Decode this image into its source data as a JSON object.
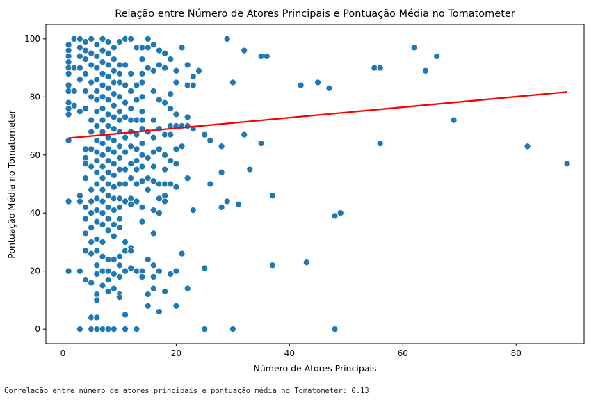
{
  "chart_data": {
    "type": "scatter",
    "title": "Relação entre Número de Atores Principais e Pontuação Média no Tomatometer",
    "xlabel": "Número de Atores Principais",
    "ylabel": "Pontuação Média no Tomatometer",
    "xlim": [
      -3,
      92
    ],
    "ylim": [
      -5,
      105
    ],
    "xticks": [
      0,
      20,
      40,
      60,
      80
    ],
    "yticks": [
      0,
      20,
      40,
      60,
      80,
      100
    ],
    "grid": false,
    "colors": {
      "points": "#1f77b4",
      "point_edge": "#ffffff",
      "regression": "#ff0000"
    },
    "regression_line": {
      "x": [
        1,
        89
      ],
      "y": [
        65.8,
        81.7
      ]
    },
    "points": [
      {
        "x": 1,
        "y": 98
      },
      {
        "x": 1,
        "y": 96
      },
      {
        "x": 1,
        "y": 94
      },
      {
        "x": 1,
        "y": 92
      },
      {
        "x": 1,
        "y": 90
      },
      {
        "x": 1,
        "y": 88
      },
      {
        "x": 1,
        "y": 84
      },
      {
        "x": 1,
        "y": 82
      },
      {
        "x": 1,
        "y": 78
      },
      {
        "x": 1,
        "y": 76
      },
      {
        "x": 1,
        "y": 74
      },
      {
        "x": 1,
        "y": 65
      },
      {
        "x": 1,
        "y": 44
      },
      {
        "x": 1,
        "y": 20
      },
      {
        "x": 2,
        "y": 100
      },
      {
        "x": 2,
        "y": 90
      },
      {
        "x": 2,
        "y": 82
      },
      {
        "x": 2,
        "y": 77
      },
      {
        "x": 3,
        "y": 100
      },
      {
        "x": 3,
        "y": 97
      },
      {
        "x": 3,
        "y": 94
      },
      {
        "x": 3,
        "y": 90
      },
      {
        "x": 3,
        "y": 86
      },
      {
        "x": 3,
        "y": 75
      },
      {
        "x": 3,
        "y": 46
      },
      {
        "x": 3,
        "y": 44
      },
      {
        "x": 3,
        "y": 20
      },
      {
        "x": 3,
        "y": 0
      },
      {
        "x": 4,
        "y": 99
      },
      {
        "x": 4,
        "y": 96
      },
      {
        "x": 4,
        "y": 93
      },
      {
        "x": 4,
        "y": 88
      },
      {
        "x": 4,
        "y": 82
      },
      {
        "x": 4,
        "y": 76
      },
      {
        "x": 4,
        "y": 62
      },
      {
        "x": 4,
        "y": 59
      },
      {
        "x": 4,
        "y": 57
      },
      {
        "x": 4,
        "y": 52
      },
      {
        "x": 4,
        "y": 42
      },
      {
        "x": 4,
        "y": 38
      },
      {
        "x": 4,
        "y": 33
      },
      {
        "x": 4,
        "y": 27
      },
      {
        "x": 4,
        "y": 17
      },
      {
        "x": 5,
        "y": 100
      },
      {
        "x": 5,
        "y": 95
      },
      {
        "x": 5,
        "y": 91
      },
      {
        "x": 5,
        "y": 85
      },
      {
        "x": 5,
        "y": 80
      },
      {
        "x": 5,
        "y": 72
      },
      {
        "x": 5,
        "y": 68
      },
      {
        "x": 5,
        "y": 62
      },
      {
        "x": 5,
        "y": 56
      },
      {
        "x": 5,
        "y": 48
      },
      {
        "x": 5,
        "y": 44
      },
      {
        "x": 5,
        "y": 40
      },
      {
        "x": 5,
        "y": 35
      },
      {
        "x": 5,
        "y": 30
      },
      {
        "x": 5,
        "y": 26
      },
      {
        "x": 5,
        "y": 16
      },
      {
        "x": 5,
        "y": 4
      },
      {
        "x": 5,
        "y": 0
      },
      {
        "x": 6,
        "y": 98
      },
      {
        "x": 6,
        "y": 94
      },
      {
        "x": 6,
        "y": 90
      },
      {
        "x": 6,
        "y": 86
      },
      {
        "x": 6,
        "y": 82
      },
      {
        "x": 6,
        "y": 79
      },
      {
        "x": 6,
        "y": 75
      },
      {
        "x": 6,
        "y": 70
      },
      {
        "x": 6,
        "y": 65
      },
      {
        "x": 6,
        "y": 61
      },
      {
        "x": 6,
        "y": 58
      },
      {
        "x": 6,
        "y": 54
      },
      {
        "x": 6,
        "y": 50
      },
      {
        "x": 6,
        "y": 45
      },
      {
        "x": 6,
        "y": 41
      },
      {
        "x": 6,
        "y": 37
      },
      {
        "x": 6,
        "y": 31
      },
      {
        "x": 6,
        "y": 27
      },
      {
        "x": 6,
        "y": 22
      },
      {
        "x": 6,
        "y": 19
      },
      {
        "x": 6,
        "y": 12
      },
      {
        "x": 6,
        "y": 10
      },
      {
        "x": 6,
        "y": 4
      },
      {
        "x": 6,
        "y": 0
      },
      {
        "x": 7,
        "y": 100
      },
      {
        "x": 7,
        "y": 96
      },
      {
        "x": 7,
        "y": 92
      },
      {
        "x": 7,
        "y": 88
      },
      {
        "x": 7,
        "y": 84
      },
      {
        "x": 7,
        "y": 80
      },
      {
        "x": 7,
        "y": 76
      },
      {
        "x": 7,
        "y": 72
      },
      {
        "x": 7,
        "y": 68
      },
      {
        "x": 7,
        "y": 64
      },
      {
        "x": 7,
        "y": 60
      },
      {
        "x": 7,
        "y": 56
      },
      {
        "x": 7,
        "y": 52
      },
      {
        "x": 7,
        "y": 48
      },
      {
        "x": 7,
        "y": 44
      },
      {
        "x": 7,
        "y": 40
      },
      {
        "x": 7,
        "y": 36
      },
      {
        "x": 7,
        "y": 30
      },
      {
        "x": 7,
        "y": 25
      },
      {
        "x": 7,
        "y": 20
      },
      {
        "x": 7,
        "y": 15
      },
      {
        "x": 7,
        "y": 0
      },
      {
        "x": 8,
        "y": 99
      },
      {
        "x": 8,
        "y": 95
      },
      {
        "x": 8,
        "y": 91
      },
      {
        "x": 8,
        "y": 87
      },
      {
        "x": 8,
        "y": 83
      },
      {
        "x": 8,
        "y": 79
      },
      {
        "x": 8,
        "y": 74
      },
      {
        "x": 8,
        "y": 70
      },
      {
        "x": 8,
        "y": 66
      },
      {
        "x": 8,
        "y": 62
      },
      {
        "x": 8,
        "y": 58
      },
      {
        "x": 8,
        "y": 54
      },
      {
        "x": 8,
        "y": 50
      },
      {
        "x": 8,
        "y": 46
      },
      {
        "x": 8,
        "y": 42
      },
      {
        "x": 8,
        "y": 38
      },
      {
        "x": 8,
        "y": 34
      },
      {
        "x": 8,
        "y": 24
      },
      {
        "x": 8,
        "y": 20
      },
      {
        "x": 8,
        "y": 17
      },
      {
        "x": 8,
        "y": 13
      },
      {
        "x": 8,
        "y": 0
      },
      {
        "x": 9,
        "y": 97
      },
      {
        "x": 9,
        "y": 93
      },
      {
        "x": 9,
        "y": 89
      },
      {
        "x": 9,
        "y": 85
      },
      {
        "x": 9,
        "y": 81
      },
      {
        "x": 9,
        "y": 77
      },
      {
        "x": 9,
        "y": 73
      },
      {
        "x": 9,
        "y": 69
      },
      {
        "x": 9,
        "y": 65
      },
      {
        "x": 9,
        "y": 61
      },
      {
        "x": 9,
        "y": 57
      },
      {
        "x": 9,
        "y": 53
      },
      {
        "x": 9,
        "y": 49
      },
      {
        "x": 9,
        "y": 45
      },
      {
        "x": 9,
        "y": 41
      },
      {
        "x": 9,
        "y": 36
      },
      {
        "x": 9,
        "y": 32
      },
      {
        "x": 9,
        "y": 24
      },
      {
        "x": 9,
        "y": 19
      },
      {
        "x": 9,
        "y": 14
      },
      {
        "x": 9,
        "y": 0
      },
      {
        "x": 10,
        "y": 99
      },
      {
        "x": 10,
        "y": 91
      },
      {
        "x": 10,
        "y": 88
      },
      {
        "x": 10,
        "y": 85
      },
      {
        "x": 10,
        "y": 80
      },
      {
        "x": 10,
        "y": 75
      },
      {
        "x": 10,
        "y": 72
      },
      {
        "x": 10,
        "y": 68
      },
      {
        "x": 10,
        "y": 63
      },
      {
        "x": 10,
        "y": 59
      },
      {
        "x": 10,
        "y": 55
      },
      {
        "x": 10,
        "y": 50
      },
      {
        "x": 10,
        "y": 45
      },
      {
        "x": 10,
        "y": 42
      },
      {
        "x": 10,
        "y": 38
      },
      {
        "x": 10,
        "y": 35
      },
      {
        "x": 10,
        "y": 25
      },
      {
        "x": 10,
        "y": 22
      },
      {
        "x": 10,
        "y": 18
      },
      {
        "x": 10,
        "y": 12
      },
      {
        "x": 10,
        "y": 11
      },
      {
        "x": 11,
        "y": 100
      },
      {
        "x": 11,
        "y": 91
      },
      {
        "x": 11,
        "y": 84
      },
      {
        "x": 11,
        "y": 78
      },
      {
        "x": 11,
        "y": 73
      },
      {
        "x": 11,
        "y": 66
      },
      {
        "x": 11,
        "y": 61
      },
      {
        "x": 11,
        "y": 55
      },
      {
        "x": 11,
        "y": 50
      },
      {
        "x": 11,
        "y": 44
      },
      {
        "x": 11,
        "y": 30
      },
      {
        "x": 11,
        "y": 27
      },
      {
        "x": 11,
        "y": 20
      },
      {
        "x": 11,
        "y": 5
      },
      {
        "x": 11,
        "y": 0
      },
      {
        "x": 12,
        "y": 100
      },
      {
        "x": 12,
        "y": 88
      },
      {
        "x": 12,
        "y": 82
      },
      {
        "x": 12,
        "y": 76
      },
      {
        "x": 12,
        "y": 72
      },
      {
        "x": 12,
        "y": 68
      },
      {
        "x": 12,
        "y": 63
      },
      {
        "x": 12,
        "y": 57
      },
      {
        "x": 12,
        "y": 52
      },
      {
        "x": 12,
        "y": 45
      },
      {
        "x": 12,
        "y": 43
      },
      {
        "x": 12,
        "y": 28
      },
      {
        "x": 12,
        "y": 27
      },
      {
        "x": 12,
        "y": 21
      },
      {
        "x": 13,
        "y": 97
      },
      {
        "x": 13,
        "y": 84
      },
      {
        "x": 13,
        "y": 79
      },
      {
        "x": 13,
        "y": 72
      },
      {
        "x": 13,
        "y": 67
      },
      {
        "x": 13,
        "y": 62
      },
      {
        "x": 13,
        "y": 58
      },
      {
        "x": 13,
        "y": 55
      },
      {
        "x": 13,
        "y": 50
      },
      {
        "x": 13,
        "y": 44
      },
      {
        "x": 13,
        "y": 20
      },
      {
        "x": 13,
        "y": 0
      },
      {
        "x": 14,
        "y": 97
      },
      {
        "x": 14,
        "y": 93
      },
      {
        "x": 14,
        "y": 88
      },
      {
        "x": 14,
        "y": 85
      },
      {
        "x": 14,
        "y": 80
      },
      {
        "x": 14,
        "y": 75
      },
      {
        "x": 14,
        "y": 72
      },
      {
        "x": 14,
        "y": 69
      },
      {
        "x": 14,
        "y": 64
      },
      {
        "x": 14,
        "y": 60
      },
      {
        "x": 14,
        "y": 56
      },
      {
        "x": 14,
        "y": 51
      },
      {
        "x": 14,
        "y": 42
      },
      {
        "x": 14,
        "y": 37
      },
      {
        "x": 14,
        "y": 20
      },
      {
        "x": 14,
        "y": 18
      },
      {
        "x": 15,
        "y": 100
      },
      {
        "x": 15,
        "y": 97
      },
      {
        "x": 15,
        "y": 90
      },
      {
        "x": 15,
        "y": 68
      },
      {
        "x": 15,
        "y": 59
      },
      {
        "x": 15,
        "y": 52
      },
      {
        "x": 15,
        "y": 48
      },
      {
        "x": 15,
        "y": 24
      },
      {
        "x": 15,
        "y": 12
      },
      {
        "x": 15,
        "y": 8
      },
      {
        "x": 16,
        "y": 98
      },
      {
        "x": 16,
        "y": 89
      },
      {
        "x": 16,
        "y": 82
      },
      {
        "x": 16,
        "y": 72
      },
      {
        "x": 16,
        "y": 66
      },
      {
        "x": 16,
        "y": 61
      },
      {
        "x": 16,
        "y": 56
      },
      {
        "x": 16,
        "y": 51
      },
      {
        "x": 16,
        "y": 41
      },
      {
        "x": 16,
        "y": 33
      },
      {
        "x": 16,
        "y": 22
      },
      {
        "x": 16,
        "y": 18
      },
      {
        "x": 16,
        "y": 14
      },
      {
        "x": 17,
        "y": 96
      },
      {
        "x": 17,
        "y": 91
      },
      {
        "x": 17,
        "y": 79
      },
      {
        "x": 17,
        "y": 69
      },
      {
        "x": 17,
        "y": 62
      },
      {
        "x": 17,
        "y": 50
      },
      {
        "x": 17,
        "y": 45
      },
      {
        "x": 17,
        "y": 40
      },
      {
        "x": 17,
        "y": 20
      },
      {
        "x": 17,
        "y": 6
      },
      {
        "x": 18,
        "y": 95
      },
      {
        "x": 18,
        "y": 90
      },
      {
        "x": 18,
        "y": 78
      },
      {
        "x": 18,
        "y": 67
      },
      {
        "x": 18,
        "y": 60
      },
      {
        "x": 18,
        "y": 55
      },
      {
        "x": 18,
        "y": 50
      },
      {
        "x": 18,
        "y": 46
      },
      {
        "x": 18,
        "y": 44
      },
      {
        "x": 18,
        "y": 13
      },
      {
        "x": 19,
        "y": 93
      },
      {
        "x": 19,
        "y": 81
      },
      {
        "x": 19,
        "y": 76
      },
      {
        "x": 19,
        "y": 70
      },
      {
        "x": 19,
        "y": 67
      },
      {
        "x": 19,
        "y": 58
      },
      {
        "x": 19,
        "y": 50
      },
      {
        "x": 19,
        "y": 19
      },
      {
        "x": 20,
        "y": 89
      },
      {
        "x": 20,
        "y": 85
      },
      {
        "x": 20,
        "y": 74
      },
      {
        "x": 20,
        "y": 70
      },
      {
        "x": 20,
        "y": 62
      },
      {
        "x": 20,
        "y": 57
      },
      {
        "x": 20,
        "y": 49
      },
      {
        "x": 20,
        "y": 20
      },
      {
        "x": 20,
        "y": 8
      },
      {
        "x": 21,
        "y": 97
      },
      {
        "x": 21,
        "y": 70
      },
      {
        "x": 21,
        "y": 63
      },
      {
        "x": 21,
        "y": 26
      },
      {
        "x": 22,
        "y": 91
      },
      {
        "x": 22,
        "y": 84
      },
      {
        "x": 22,
        "y": 73
      },
      {
        "x": 22,
        "y": 70
      },
      {
        "x": 22,
        "y": 52
      },
      {
        "x": 22,
        "y": 14
      },
      {
        "x": 23,
        "y": 87
      },
      {
        "x": 23,
        "y": 84
      },
      {
        "x": 23,
        "y": 69
      },
      {
        "x": 23,
        "y": 41
      },
      {
        "x": 24,
        "y": 89
      },
      {
        "x": 25,
        "y": 67
      },
      {
        "x": 25,
        "y": 21
      },
      {
        "x": 25,
        "y": 0
      },
      {
        "x": 26,
        "y": 65
      },
      {
        "x": 26,
        "y": 50
      },
      {
        "x": 28,
        "y": 63
      },
      {
        "x": 28,
        "y": 54
      },
      {
        "x": 28,
        "y": 42
      },
      {
        "x": 29,
        "y": 100
      },
      {
        "x": 29,
        "y": 44
      },
      {
        "x": 30,
        "y": 85
      },
      {
        "x": 30,
        "y": 0
      },
      {
        "x": 31,
        "y": 43
      },
      {
        "x": 32,
        "y": 96
      },
      {
        "x": 32,
        "y": 67
      },
      {
        "x": 33,
        "y": 55
      },
      {
        "x": 35,
        "y": 94
      },
      {
        "x": 35,
        "y": 64
      },
      {
        "x": 36,
        "y": 94
      },
      {
        "x": 37,
        "y": 46
      },
      {
        "x": 37,
        "y": 22
      },
      {
        "x": 42,
        "y": 84
      },
      {
        "x": 43,
        "y": 23
      },
      {
        "x": 45,
        "y": 85
      },
      {
        "x": 47,
        "y": 83
      },
      {
        "x": 48,
        "y": 39
      },
      {
        "x": 48,
        "y": 0
      },
      {
        "x": 49,
        "y": 40
      },
      {
        "x": 55,
        "y": 90
      },
      {
        "x": 56,
        "y": 90
      },
      {
        "x": 56,
        "y": 64
      },
      {
        "x": 62,
        "y": 97
      },
      {
        "x": 64,
        "y": 89
      },
      {
        "x": 66,
        "y": 94
      },
      {
        "x": 69,
        "y": 72
      },
      {
        "x": 82,
        "y": 63
      },
      {
        "x": 89,
        "y": 57
      }
    ]
  },
  "caption": "Correlação entre número de atores principais e pontuação média no Tomatometer: 0.13"
}
